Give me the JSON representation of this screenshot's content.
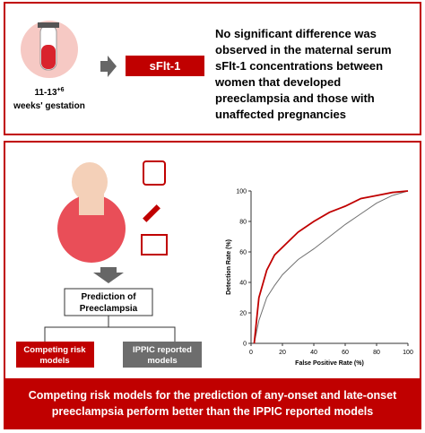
{
  "top_panel": {
    "gestation": {
      "weeks": "11-13",
      "superscript": "+6",
      "label": "weeks' gestation"
    },
    "marker": "sFlt-1",
    "finding": [
      "No significant difference was",
      "observed in the maternal serum",
      "sFlt-1 concentrations between",
      "women that developed",
      "preeclampsia and those with",
      "unaffected pregnancies"
    ]
  },
  "bottom_panel": {
    "prediction": [
      "Prediction of",
      "Preeclampsia"
    ],
    "model_a": [
      "Competing risk",
      "models"
    ],
    "model_b": [
      "IPPIC reported",
      "models"
    ],
    "roc_chart": {
      "type": "line",
      "x_label": "False Positive Rate (%)",
      "y_label": "Detection Rate (%)",
      "xlim": [
        0,
        100
      ],
      "ylim": [
        0,
        100
      ],
      "xticks": [
        0,
        20,
        40,
        60,
        80,
        100
      ],
      "yticks": [
        0,
        20,
        40,
        60,
        80,
        100
      ],
      "series": [
        {
          "color": "#c00000",
          "x": [
            2,
            5,
            10,
            15,
            20,
            25,
            30,
            40,
            50,
            60,
            70,
            80,
            90,
            100
          ],
          "values": [
            0,
            30,
            48,
            58,
            63,
            68,
            73,
            80,
            86,
            90,
            95,
            97,
            99,
            100
          ]
        },
        {
          "color": "#707070",
          "x": [
            2,
            5,
            10,
            15,
            20,
            30,
            40,
            50,
            60,
            70,
            80,
            90,
            100
          ],
          "values": [
            0,
            15,
            30,
            38,
            45,
            55,
            62,
            70,
            78,
            85,
            92,
            97,
            100
          ]
        }
      ]
    },
    "conclusion": [
      "Competing risk models for the prediction of any-onset and late-onset",
      "preeclampsia perform better than the IPPIC reported models"
    ]
  }
}
